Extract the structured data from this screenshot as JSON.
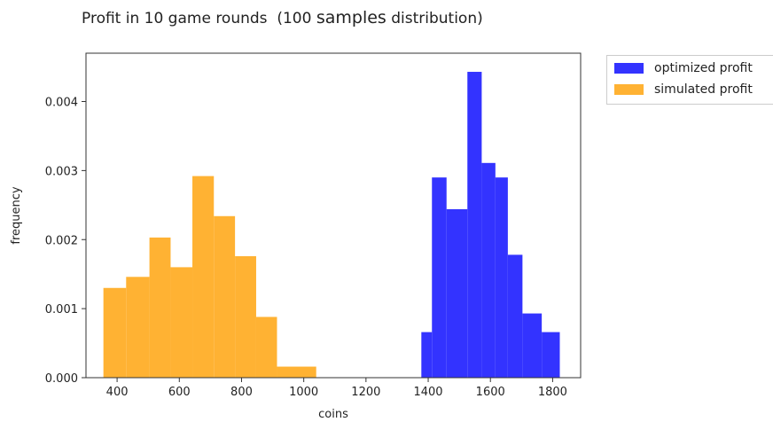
{
  "chart_data": {
    "type": "bar",
    "title_parts": [
      "Profit in 10 game rounds  (100 ",
      "samples",
      " distribution)"
    ],
    "xlabel": "coins",
    "ylabel": "frequency",
    "xlim": [
      300,
      1890
    ],
    "ylim": [
      0,
      0.0047
    ],
    "xticks": [
      400,
      600,
      800,
      1000,
      1200,
      1400,
      1600,
      1800
    ],
    "xtick_labels": [
      "400",
      "600",
      "800",
      "1000",
      "1200",
      "1400",
      "1600",
      "1800"
    ],
    "yticks": [
      0,
      0.001,
      0.002,
      0.003,
      0.004
    ],
    "ytick_labels": [
      "0.000",
      "0.001",
      "0.002",
      "0.003",
      "0.004"
    ],
    "legend_position": "upper right, outside plot",
    "series": [
      {
        "name": "optimized profit",
        "color": "#3333ff",
        "bins": [
          {
            "x0": 1378,
            "x1": 1412,
            "value": 0.00066
          },
          {
            "x0": 1412,
            "x1": 1459,
            "value": 0.0029
          },
          {
            "x0": 1459,
            "x1": 1526,
            "value": 0.00244
          },
          {
            "x0": 1526,
            "x1": 1572,
            "value": 0.00443
          },
          {
            "x0": 1572,
            "x1": 1616,
            "value": 0.00311
          },
          {
            "x0": 1616,
            "x1": 1656,
            "value": 0.0029
          },
          {
            "x0": 1656,
            "x1": 1703,
            "value": 0.00178
          },
          {
            "x0": 1703,
            "x1": 1765,
            "value": 0.00093
          },
          {
            "x0": 1765,
            "x1": 1823,
            "value": 0.00066
          }
        ]
      },
      {
        "name": "simulated profit",
        "color": "#ffb233",
        "bins": [
          {
            "x0": 356,
            "x1": 429,
            "value": 0.0013
          },
          {
            "x0": 429,
            "x1": 504,
            "value": 0.00146
          },
          {
            "x0": 504,
            "x1": 572,
            "value": 0.00203
          },
          {
            "x0": 572,
            "x1": 642,
            "value": 0.0016
          },
          {
            "x0": 642,
            "x1": 711,
            "value": 0.00292
          },
          {
            "x0": 711,
            "x1": 779,
            "value": 0.00234
          },
          {
            "x0": 779,
            "x1": 847,
            "value": 0.00176
          },
          {
            "x0": 847,
            "x1": 914,
            "value": 0.00088
          },
          {
            "x0": 914,
            "x1": 1040,
            "value": 0.00016
          }
        ]
      }
    ]
  }
}
